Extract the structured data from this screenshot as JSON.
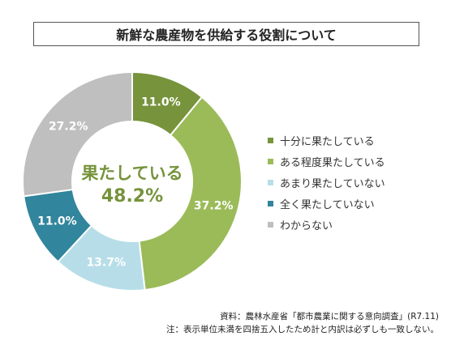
{
  "title": "新鮮な農産物を供給する役割について",
  "center_label": {
    "line1": "果たしている",
    "line2": "48.2%",
    "color": "#76933c"
  },
  "chart_data": {
    "type": "pie",
    "donut": true,
    "categories": [
      "十分に果たしている",
      "ある程度果たしている",
      "あまり果たしていない",
      "全く果たしていない",
      "わからない"
    ],
    "values": [
      11.0,
      37.2,
      13.7,
      11.0,
      27.2
    ],
    "labels": [
      "11.0%",
      "37.2%",
      "13.7%",
      "11.0%",
      "27.2%"
    ],
    "colors": [
      "#77933c",
      "#9bbb59",
      "#b7dee8",
      "#31859c",
      "#bfbfbf"
    ],
    "legend_position": "right"
  },
  "notes": {
    "source": "資料：農林水産省「都市農業に関する意向調査」(R7.11)",
    "note": "注：表示単位未満を四捨五入したため計と内訳は必ずしも一致しない。"
  }
}
